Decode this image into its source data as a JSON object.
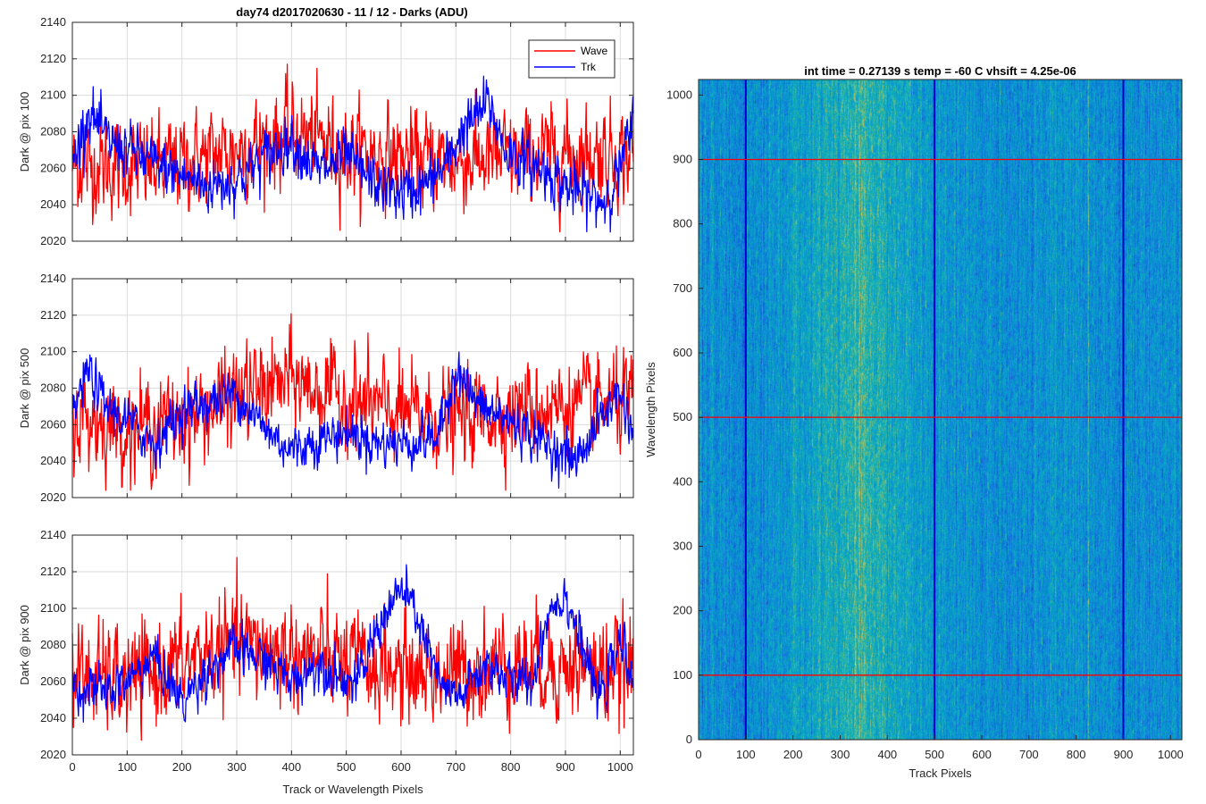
{
  "figure": {
    "suptitle": "day74 d2017020630 - 11 / 12 - Darks (ADU)"
  },
  "chart_data": [
    {
      "type": "line",
      "ylabel": "Dark @ pix 100",
      "xlabel": "",
      "xlim": [
        0,
        1024
      ],
      "ylim": [
        2020,
        2140
      ],
      "xticks": [
        0,
        100,
        200,
        300,
        400,
        500,
        600,
        700,
        800,
        900,
        1000
      ],
      "yticks": [
        2020,
        2040,
        2060,
        2080,
        2100,
        2120,
        2140
      ],
      "show_xtick_labels": false,
      "grid": true,
      "legend": {
        "placement": "top-right",
        "entries": [
          "Wave",
          "Trk"
        ]
      },
      "series": [
        {
          "name": "Wave",
          "color": "#ff0000",
          "n": 1024,
          "mean": 2065,
          "trend": [
            [
              0,
              2062
            ],
            [
              100,
              2060
            ],
            [
              200,
              2063
            ],
            [
              300,
              2070
            ],
            [
              400,
              2080
            ],
            [
              500,
              2070
            ],
            [
              600,
              2066
            ],
            [
              700,
              2064
            ],
            [
              800,
              2066
            ],
            [
              900,
              2068
            ],
            [
              1024,
              2068
            ]
          ],
          "noise": 12
        },
        {
          "name": "Trk",
          "color": "#0000ff",
          "n": 1024,
          "mean": 2065,
          "trend": [
            [
              0,
              2062
            ],
            [
              30,
              2092
            ],
            [
              60,
              2076
            ],
            [
              100,
              2070
            ],
            [
              150,
              2062
            ],
            [
              200,
              2056
            ],
            [
              250,
              2050
            ],
            [
              300,
              2054
            ],
            [
              360,
              2068
            ],
            [
              400,
              2076
            ],
            [
              450,
              2058
            ],
            [
              500,
              2066
            ],
            [
              550,
              2052
            ],
            [
              600,
              2046
            ],
            [
              640,
              2050
            ],
            [
              680,
              2060
            ],
            [
              710,
              2080
            ],
            [
              760,
              2096
            ],
            [
              790,
              2070
            ],
            [
              820,
              2064
            ],
            [
              870,
              2058
            ],
            [
              920,
              2046
            ],
            [
              970,
              2042
            ],
            [
              1000,
              2060
            ],
            [
              1024,
              2085
            ]
          ],
          "noise": 7
        }
      ]
    },
    {
      "type": "line",
      "ylabel": "Dark @ pix 500",
      "xlabel": "",
      "xlim": [
        0,
        1024
      ],
      "ylim": [
        2020,
        2140
      ],
      "xticks": [
        0,
        100,
        200,
        300,
        400,
        500,
        600,
        700,
        800,
        900,
        1000
      ],
      "yticks": [
        2020,
        2040,
        2060,
        2080,
        2100,
        2120,
        2140
      ],
      "show_xtick_labels": false,
      "grid": true,
      "series": [
        {
          "name": "Wave",
          "color": "#ff0000",
          "n": 1024,
          "mean": 2066,
          "trend": [
            [
              0,
              2064
            ],
            [
              100,
              2058
            ],
            [
              200,
              2062
            ],
            [
              300,
              2076
            ],
            [
              400,
              2084
            ],
            [
              500,
              2074
            ],
            [
              600,
              2066
            ],
            [
              700,
              2064
            ],
            [
              800,
              2068
            ],
            [
              900,
              2070
            ],
            [
              1024,
              2072
            ]
          ],
          "noise": 12
        },
        {
          "name": "Trk",
          "color": "#0000ff",
          "n": 1024,
          "mean": 2060,
          "trend": [
            [
              0,
              2065
            ],
            [
              30,
              2090
            ],
            [
              60,
              2070
            ],
            [
              100,
              2062
            ],
            [
              150,
              2050
            ],
            [
              200,
              2068
            ],
            [
              250,
              2072
            ],
            [
              300,
              2078
            ],
            [
              350,
              2058
            ],
            [
              400,
              2046
            ],
            [
              450,
              2052
            ],
            [
              500,
              2056
            ],
            [
              560,
              2050
            ],
            [
              620,
              2050
            ],
            [
              670,
              2054
            ],
            [
              700,
              2092
            ],
            [
              740,
              2070
            ],
            [
              800,
              2062
            ],
            [
              860,
              2050
            ],
            [
              920,
              2040
            ],
            [
              960,
              2062
            ],
            [
              1000,
              2078
            ],
            [
              1024,
              2055
            ]
          ],
          "noise": 6
        }
      ]
    },
    {
      "type": "line",
      "ylabel": "Dark @ pix 900",
      "xlabel": "Track or Wavelength Pixels",
      "xlim": [
        0,
        1024
      ],
      "ylim": [
        2020,
        2140
      ],
      "xticks": [
        0,
        100,
        200,
        300,
        400,
        500,
        600,
        700,
        800,
        900,
        1000
      ],
      "yticks": [
        2020,
        2040,
        2060,
        2080,
        2100,
        2120,
        2140
      ],
      "show_xtick_labels": true,
      "grid": true,
      "series": [
        {
          "name": "Wave",
          "color": "#ff0000",
          "n": 1024,
          "mean": 2068,
          "trend": [
            [
              0,
              2064
            ],
            [
              100,
              2060
            ],
            [
              200,
              2070
            ],
            [
              300,
              2080
            ],
            [
              400,
              2076
            ],
            [
              500,
              2070
            ],
            [
              600,
              2066
            ],
            [
              700,
              2064
            ],
            [
              800,
              2072
            ],
            [
              900,
              2068
            ],
            [
              1024,
              2066
            ]
          ],
          "noise": 13
        },
        {
          "name": "Trk",
          "color": "#0000ff",
          "n": 1024,
          "mean": 2066,
          "trend": [
            [
              0,
              2058
            ],
            [
              60,
              2054
            ],
            [
              100,
              2060
            ],
            [
              150,
              2074
            ],
            [
              200,
              2048
            ],
            [
              250,
              2068
            ],
            [
              300,
              2078
            ],
            [
              350,
              2072
            ],
            [
              400,
              2060
            ],
            [
              450,
              2070
            ],
            [
              520,
              2058
            ],
            [
              560,
              2092
            ],
            [
              600,
              2110
            ],
            [
              630,
              2096
            ],
            [
              670,
              2058
            ],
            [
              700,
              2050
            ],
            [
              760,
              2070
            ],
            [
              800,
              2060
            ],
            [
              840,
              2060
            ],
            [
              870,
              2100
            ],
            [
              900,
              2108
            ],
            [
              930,
              2080
            ],
            [
              960,
              2050
            ],
            [
              1000,
              2080
            ],
            [
              1024,
              2065
            ]
          ],
          "noise": 6
        }
      ]
    },
    {
      "type": "heatmap",
      "title": "int time = 0.27139 s   temp = -60 C   vhsift = 4.25e-06",
      "xlabel": "Track Pixels",
      "ylabel": "Wavelength Pixels",
      "xlim": [
        0,
        1024
      ],
      "ylim": [
        0,
        1024
      ],
      "xticks": [
        0,
        100,
        200,
        300,
        400,
        500,
        600,
        700,
        800,
        900,
        1000
      ],
      "yticks": [
        0,
        100,
        200,
        300,
        400,
        500,
        600,
        700,
        800,
        900,
        1000
      ],
      "colormap": "parula",
      "grid": false,
      "vertical_markers": {
        "color": "#0000cc",
        "x": [
          100,
          500,
          900
        ]
      },
      "horizontal_markers": {
        "color": "#ff0000",
        "y": [
          100,
          500,
          900
        ]
      },
      "column_profile": [
        [
          0,
          0.4
        ],
        [
          100,
          0.36
        ],
        [
          200,
          0.46
        ],
        [
          300,
          0.58
        ],
        [
          360,
          0.62
        ],
        [
          420,
          0.52
        ],
        [
          500,
          0.42
        ],
        [
          600,
          0.4
        ],
        [
          700,
          0.38
        ],
        [
          800,
          0.42
        ],
        [
          900,
          0.38
        ],
        [
          1000,
          0.4
        ],
        [
          1024,
          0.42
        ]
      ]
    }
  ]
}
